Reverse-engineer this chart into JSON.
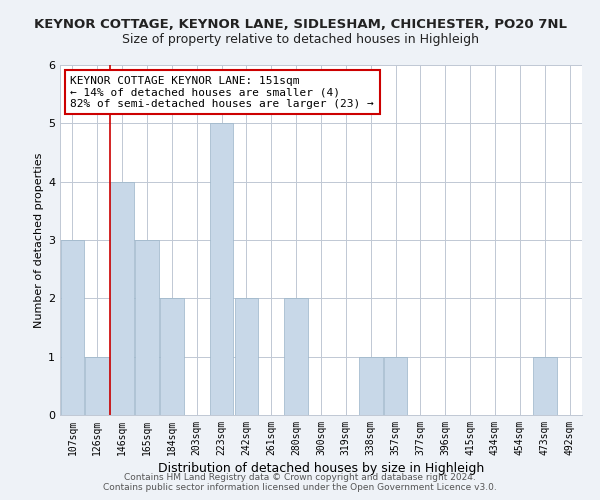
{
  "title": "KEYNOR COTTAGE, KEYNOR LANE, SIDLESHAM, CHICHESTER, PO20 7NL",
  "subtitle": "Size of property relative to detached houses in Highleigh",
  "xlabel": "Distribution of detached houses by size in Highleigh",
  "ylabel": "Number of detached properties",
  "bar_labels": [
    "107sqm",
    "126sqm",
    "146sqm",
    "165sqm",
    "184sqm",
    "203sqm",
    "223sqm",
    "242sqm",
    "261sqm",
    "280sqm",
    "300sqm",
    "319sqm",
    "338sqm",
    "357sqm",
    "377sqm",
    "396sqm",
    "415sqm",
    "434sqm",
    "454sqm",
    "473sqm",
    "492sqm"
  ],
  "bar_values": [
    3,
    1,
    4,
    3,
    2,
    0,
    5,
    2,
    0,
    2,
    0,
    0,
    1,
    1,
    0,
    0,
    0,
    0,
    0,
    1,
    0
  ],
  "bar_color": "#c8d8e8",
  "bar_edge_color": "#9ab4c8",
  "red_line_x": 1.5,
  "ylim": [
    0,
    6
  ],
  "yticks": [
    0,
    1,
    2,
    3,
    4,
    5,
    6
  ],
  "annotation_lines": [
    "KEYNOR COTTAGE KEYNOR LANE: 151sqm",
    "← 14% of detached houses are smaller (4)",
    "82% of semi-detached houses are larger (23) →"
  ],
  "footer_line1": "Contains HM Land Registry data © Crown copyright and database right 2024.",
  "footer_line2": "Contains public sector information licensed under the Open Government Licence v3.0.",
  "background_color": "#eef2f7",
  "plot_bg_color": "#ffffff",
  "red_line_color": "#cc0000",
  "annotation_box_color": "#ffffff",
  "annotation_box_edge": "#cc0000",
  "grid_color": "#c0c8d4",
  "title_fontsize": 9.5,
  "subtitle_fontsize": 9,
  "xlabel_fontsize": 9,
  "ylabel_fontsize": 8,
  "tick_fontsize": 7,
  "annotation_fontsize": 8,
  "footer_fontsize": 6.5
}
